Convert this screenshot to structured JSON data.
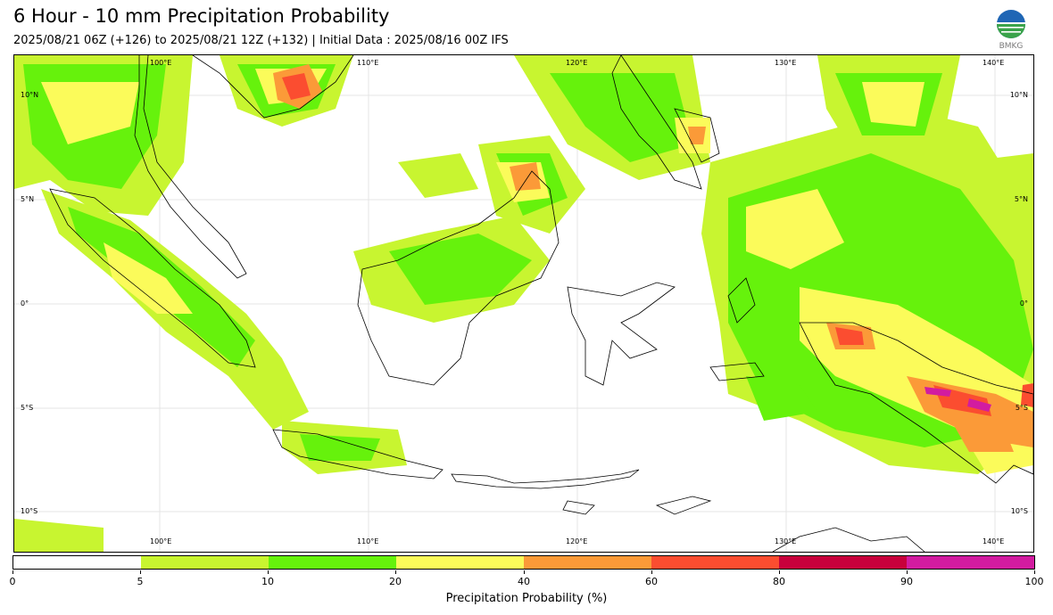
{
  "header": {
    "title": "6 Hour - 10 mm Precipitation Probability",
    "subtitle": "2025/08/21 06Z (+126) to 2025/08/21 12Z (+132) | Initial Data : 2025/08/16 00Z IFS",
    "logo_text": "BMKG"
  },
  "map": {
    "lon_labels_top": [
      "100°E",
      "110°E",
      "120°E",
      "130°E",
      "140°E"
    ],
    "lon_labels_bottom": [
      "100°E",
      "110°E",
      "120°E",
      "130°E",
      "140°E"
    ],
    "lat_labels_left": [
      "10°N",
      "5°N",
      "0°",
      "5°S",
      "10°S"
    ],
    "lat_labels_right": [
      "10°N",
      "5°N",
      "0°",
      "5°S",
      "10°S"
    ],
    "gridlines": true
  },
  "legend": {
    "title": "Precipitation Probability (%)",
    "ticks": [
      "0",
      "5",
      "10",
      "20",
      "40",
      "60",
      "80",
      "90",
      "100"
    ],
    "colors": [
      "#ffffff",
      "#c8f530",
      "#66f20c",
      "#fbfb5a",
      "#fb9a38",
      "#fb4d30",
      "#c8003c",
      "#d21ca0"
    ]
  }
}
